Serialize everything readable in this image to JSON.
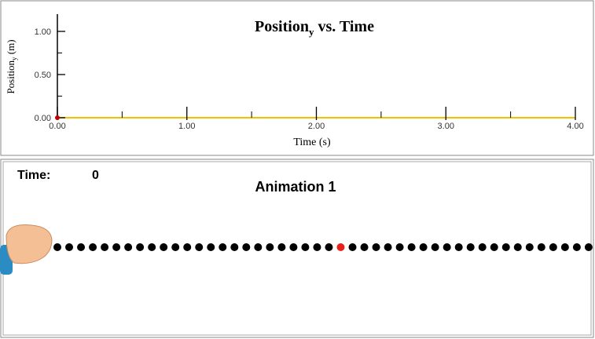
{
  "chart_data": {
    "type": "line",
    "title": {
      "text": "Position",
      "subscript": "y",
      "rest": " vs. Time"
    },
    "ylabel": {
      "text": "Position",
      "subscript": "y",
      "rest": " (m)"
    },
    "xlabel": "Time (s)",
    "series": [
      {
        "x": [
          0
        ],
        "values": [
          0
        ],
        "color": "#c00000"
      }
    ],
    "axis_color": "#f2c200",
    "xlim": [
      0,
      4
    ],
    "ylim": [
      0,
      1.2
    ],
    "xticks": [
      {
        "value": 0,
        "label": "0.00"
      },
      {
        "value": 1,
        "label": "1.00"
      },
      {
        "value": 2,
        "label": "2.00"
      },
      {
        "value": 3,
        "label": "3.00"
      },
      {
        "value": 4,
        "label": "4.00"
      }
    ],
    "xminor": [
      0.5,
      1.5,
      2.5,
      3.5
    ],
    "yticks": [
      {
        "value": 0,
        "label": "0.00"
      },
      {
        "value": 0.5,
        "label": "0.50"
      },
      {
        "value": 1,
        "label": "1.00"
      }
    ],
    "yminor": [
      0.25,
      0.75
    ]
  },
  "animation": {
    "time_label": "Time:",
    "time_value": 0,
    "title": "Animation 1"
  }
}
